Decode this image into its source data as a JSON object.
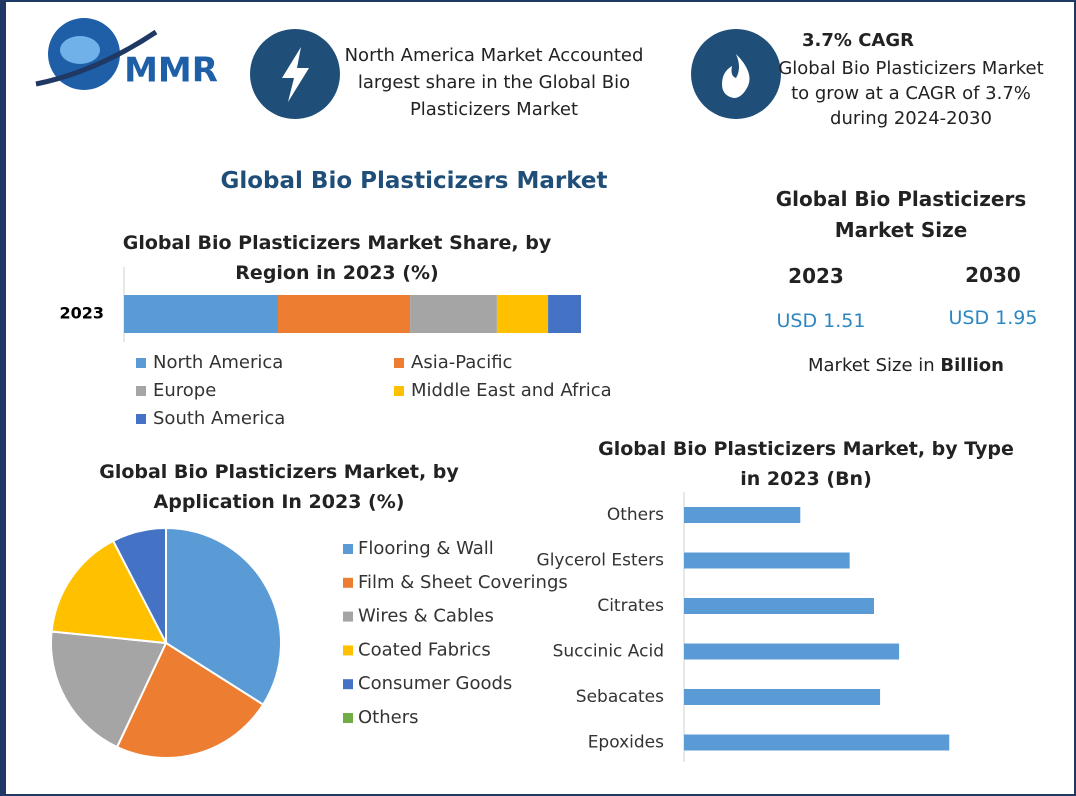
{
  "header": {
    "logo": "MMR",
    "highlight_1": "North America Market Accounted largest share in the Global Bio Plasticizers Market",
    "highlight_2_title": "3.7% CAGR",
    "highlight_2": "Global Bio Plasticizers Market to grow at a CAGR of 3.7% during 2024-2030",
    "main_title": "Global Bio Plasticizers Market"
  },
  "market_size": {
    "title": "Global Bio Plasticizers Market Size",
    "years": [
      "2023",
      "2030"
    ],
    "values": [
      "USD 1.51",
      "USD 1.95"
    ],
    "note": "Market Size in",
    "unit": "Billion"
  },
  "chart_data": [
    {
      "type": "stacked_bar",
      "title": "Global Bio Plasticizers Market Share, by Region in 2023 (%)",
      "categories": [
        "2023"
      ],
      "xlim": [
        0,
        100
      ],
      "series": [
        {
          "name": "North America",
          "color": "#5b9bd5",
          "values": [
            33.7
          ]
        },
        {
          "name": "Asia-Pacific",
          "color": "#ed7d31",
          "values": [
            28.9
          ]
        },
        {
          "name": "Europe",
          "color": "#a5a5a5",
          "values": [
            19
          ]
        },
        {
          "name": "Middle East and Africa",
          "color": "#ffc000",
          "values": [
            11.2
          ]
        },
        {
          "name": "South America",
          "color": "#4472c4",
          "values": [
            7.2
          ]
        }
      ]
    },
    {
      "type": "pie",
      "title": "Global Bio Plasticizers Market, by Application In 2023 (%)",
      "categories": [
        "Flooring & Wall",
        "Film & Sheet Coverings",
        "Wires & Cables",
        "Coated Fabrics",
        "Consumer Goods",
        "Others"
      ],
      "values": [
        34,
        23,
        19.6,
        15.8,
        7.6,
        0
      ],
      "colors": [
        "#5b9bd5",
        "#ed7d31",
        "#a5a5a5",
        "#ffc000",
        "#4472c4",
        "#70ad47"
      ]
    },
    {
      "type": "bar",
      "orientation": "horizontal",
      "title": "Global Bio Plasticizers Market, by Type in 2023 (Bn)",
      "categories": [
        "Others",
        "Glycerol Esters",
        "Citrates",
        "Succinic Acid",
        "Sebacates",
        "Epoxides"
      ],
      "values": [
        0.153,
        0.218,
        0.25,
        0.283,
        0.258,
        0.349
      ],
      "color": "#5b9bd5",
      "xlim": [
        0,
        0.4
      ]
    }
  ]
}
